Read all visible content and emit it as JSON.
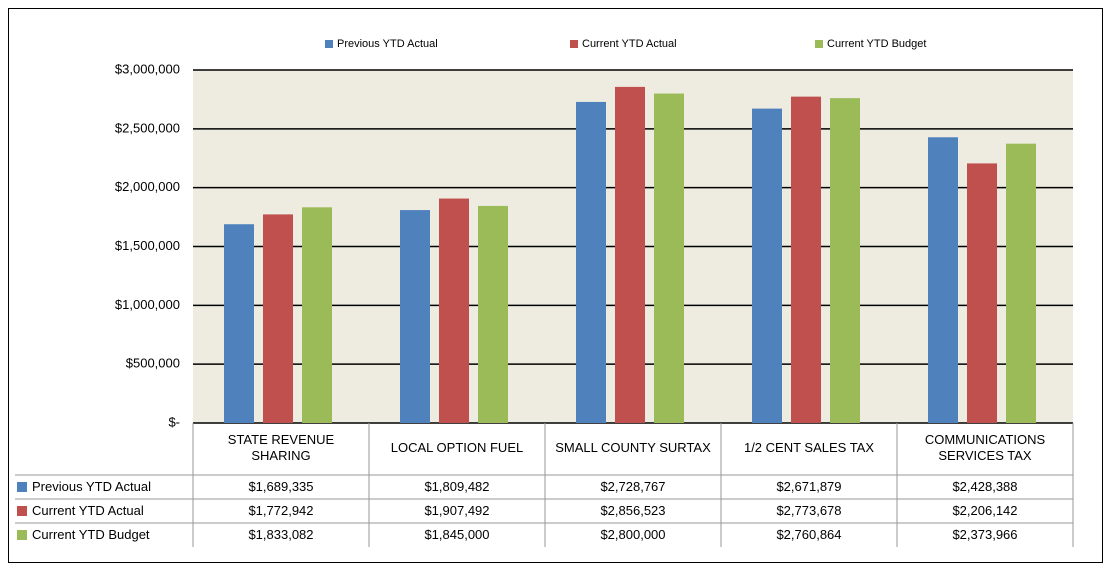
{
  "chart_data": {
    "type": "bar",
    "categories": [
      "STATE REVENUE SHARING",
      "LOCAL OPTION FUEL",
      "SMALL COUNTY SURTAX",
      "1/2 CENT SALES TAX",
      "COMMUNICATIONS SERVICES TAX"
    ],
    "series": [
      {
        "name": "Previous YTD Actual",
        "color": "#4f81bd",
        "values": [
          1689335,
          1809482,
          2728767,
          2671879,
          2428388
        ],
        "value_labels": [
          "$1,689,335",
          "$1,809,482",
          "$2,728,767",
          "$2,671,879",
          "$2,428,388"
        ]
      },
      {
        "name": "Current YTD Actual",
        "color": "#c0504d",
        "values": [
          1772942,
          1907492,
          2856523,
          2773678,
          2206142
        ],
        "value_labels": [
          "$1,772,942",
          "$1,907,492",
          "$2,856,523",
          "$2,773,678",
          "$2,206,142"
        ]
      },
      {
        "name": "Current YTD Budget",
        "color": "#9bbb59",
        "values": [
          1833082,
          1845000,
          2800000,
          2760864,
          2373966
        ],
        "value_labels": [
          "$1,833,082",
          "$1,845,000",
          "$2,800,000",
          "$2,760,864",
          "$2,373,966"
        ]
      }
    ],
    "ylim": [
      0,
      3000000
    ],
    "yticks": [
      {
        "value": 0,
        "label": "$-"
      },
      {
        "value": 500000,
        "label": "$500,000"
      },
      {
        "value": 1000000,
        "label": "$1,000,000"
      },
      {
        "value": 1500000,
        "label": "$1,500,000"
      },
      {
        "value": 2000000,
        "label": "$2,000,000"
      },
      {
        "value": 2500000,
        "label": "$2,500,000"
      },
      {
        "value": 3000000,
        "label": "$3,000,000"
      }
    ],
    "grid": true,
    "legend": "top",
    "plot_background": "#eeece1"
  }
}
